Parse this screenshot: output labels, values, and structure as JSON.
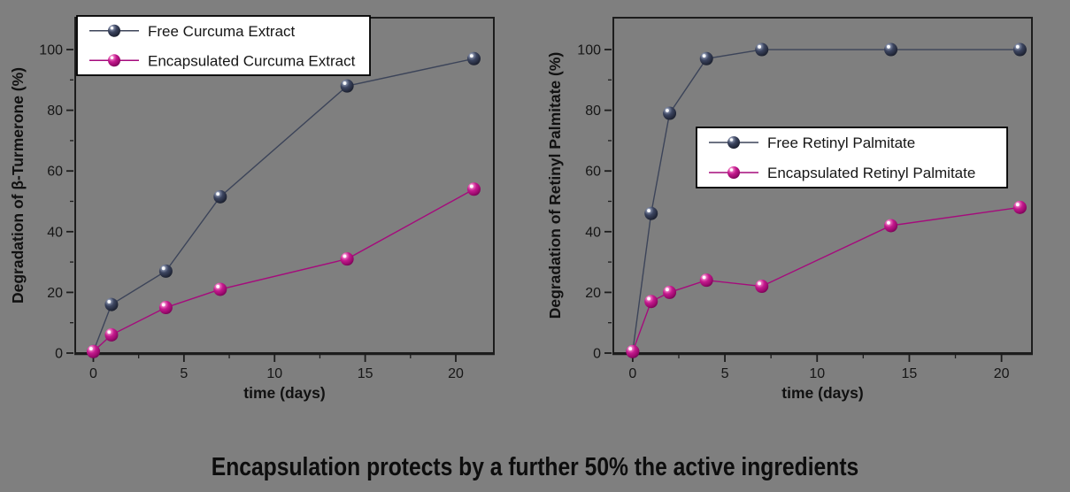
{
  "background": "#7f7f7f",
  "caption": "Encapsulation protects by a further 50% the active ingredients",
  "palette": {
    "frame": "#1c1c1c",
    "tick_text": "#161616",
    "legend_background": "#ffffff",
    "legend_border": "#000000",
    "free_line": "#3c4459",
    "free_sphere_stops": [
      "#cfd6e4",
      "#8892ab",
      "#3c4560",
      "#262c3f",
      "#141823"
    ],
    "encapsulated_line": "#a50b7c",
    "encapsulated_sphere_stops": [
      "#ffd7ef",
      "#f07ec4",
      "#c41a8e",
      "#9c0a6e",
      "#66004a"
    ]
  },
  "chart_data": [
    {
      "type": "line",
      "title": "",
      "xlabel": "time (days)",
      "ylabel": "Degradation of β-Turmerone (%)",
      "x": [
        0,
        1,
        4,
        7,
        14,
        21
      ],
      "series": [
        {
          "name": "Free Curcuma Extract",
          "color_key": "free",
          "values": [
            0.5,
            16,
            27,
            51.5,
            88,
            97
          ]
        },
        {
          "name": "Encapsulated Curcuma Extract",
          "color_key": "encapsulated",
          "values": [
            0.5,
            6,
            15,
            21,
            31,
            54
          ]
        }
      ],
      "xlim": [
        -1.0,
        22.1
      ],
      "ylim": [
        0,
        110.5
      ],
      "x_major_ticks": [
        0,
        5,
        10,
        15,
        20
      ],
      "x_minor_ticks": [
        2.5,
        7.5,
        12.5,
        17.5
      ],
      "y_major_ticks": [
        0,
        20,
        40,
        60,
        80,
        100
      ],
      "y_minor_ticks": [
        10,
        30,
        50,
        70,
        90
      ],
      "grid": false,
      "legend_position": "top-left"
    },
    {
      "type": "line",
      "title": "",
      "xlabel": "time (days)",
      "ylabel": "Degradation of Retinyl Palmitate (%)",
      "x": [
        0,
        1,
        2,
        4,
        7,
        14,
        21
      ],
      "series": [
        {
          "name": "Free Retinyl Palmitate",
          "color_key": "free",
          "values": [
            0.5,
            46,
            79,
            97,
            100,
            100,
            100
          ]
        },
        {
          "name": "Encapsulated Retinyl Palmitate",
          "color_key": "encapsulated",
          "values": [
            0.5,
            17,
            20,
            24,
            22,
            42,
            48
          ]
        }
      ],
      "xlim": [
        -1.05,
        21.65
      ],
      "ylim": [
        0,
        110.5
      ],
      "x_major_ticks": [
        0,
        5,
        10,
        15,
        20
      ],
      "x_minor_ticks": [
        2.5,
        7.5,
        12.5,
        17.5
      ],
      "y_major_ticks": [
        0,
        20,
        40,
        60,
        80,
        100
      ],
      "y_minor_ticks": [
        10,
        30,
        50,
        70,
        90
      ],
      "grid": false,
      "legend_position": "center"
    }
  ]
}
